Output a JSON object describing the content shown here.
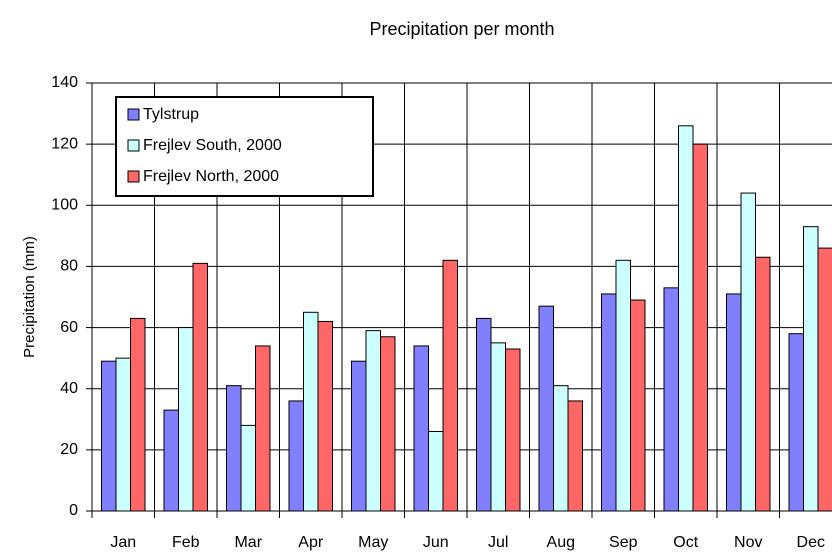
{
  "chart_data": {
    "type": "bar",
    "title": "Precipitation per month",
    "ylabel": "Precipitation (mm)",
    "categories": [
      "Jan",
      "Feb",
      "Mar",
      "Apr",
      "May",
      "Jun",
      "Jul",
      "Aug",
      "Sep",
      "Oct",
      "Nov",
      "Dec"
    ],
    "series": [
      {
        "name": "Tylstrup",
        "color": "#8080ff",
        "values": [
          49,
          33,
          41,
          36,
          49,
          54,
          63,
          67,
          71,
          73,
          71,
          58
        ]
      },
      {
        "name": "Frejlev South, 2000",
        "color": "#ccffff",
        "values": [
          50,
          60,
          28,
          65,
          59,
          26,
          55,
          41,
          82,
          126,
          104,
          93
        ]
      },
      {
        "name": "Frejlev North, 2000",
        "color": "#ff6666",
        "values": [
          63,
          81,
          54,
          62,
          57,
          82,
          53,
          36,
          69,
          120,
          83,
          86
        ]
      }
    ],
    "ylim": [
      0,
      140
    ],
    "yticks": [
      0,
      20,
      40,
      60,
      80,
      100,
      120,
      140
    ],
    "grid": true,
    "legend": "upper left"
  }
}
